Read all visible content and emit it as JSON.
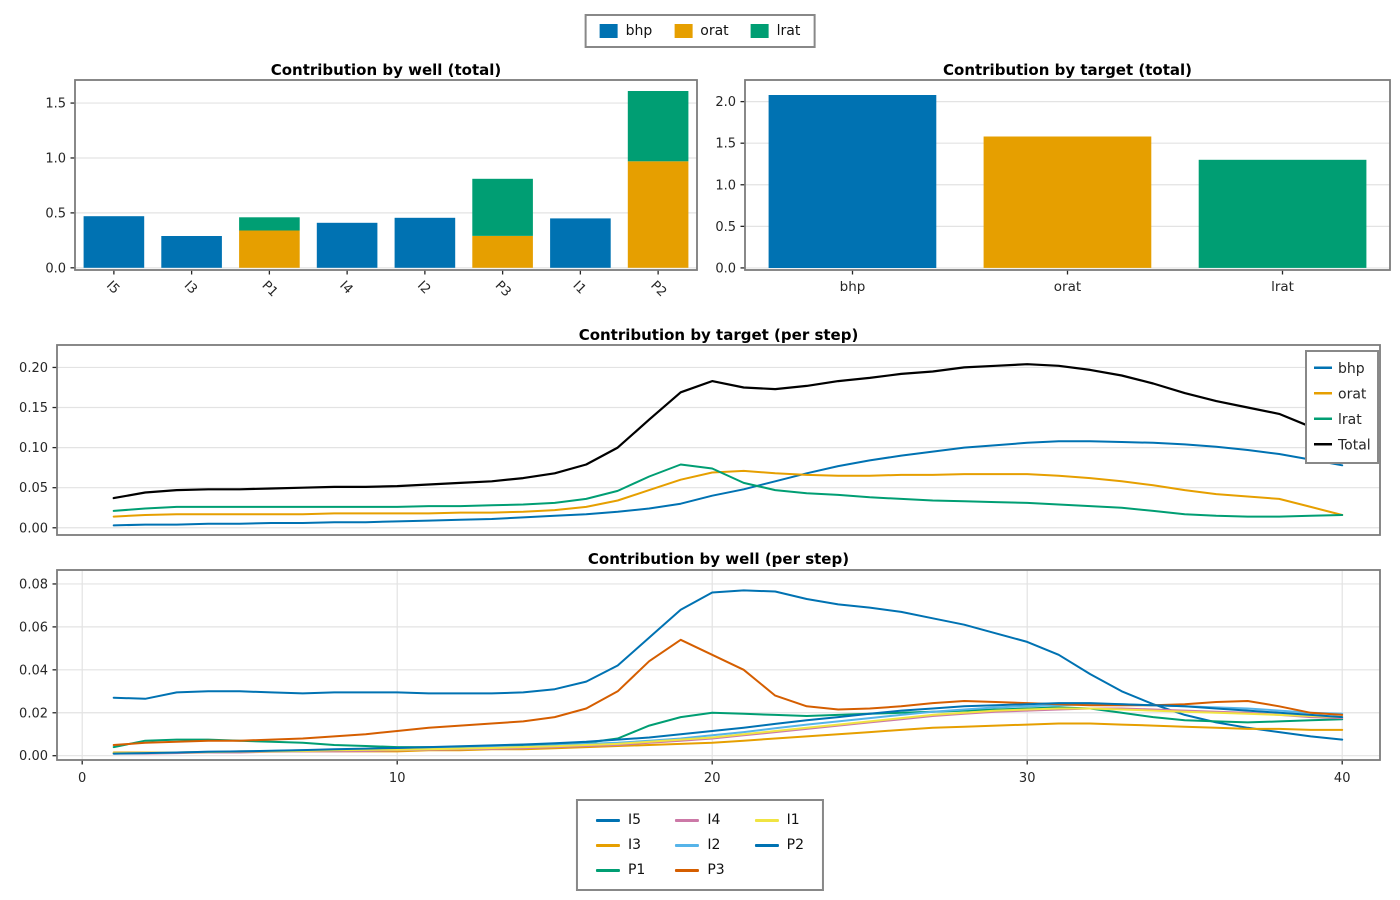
{
  "figure": {
    "background": "#ffffff"
  },
  "palette": {
    "bhp": "#0072B2",
    "orat": "#E69F00",
    "lrat": "#009E73",
    "total": "#000000",
    "axis_spine": "#7c7c7c",
    "gridline": "#e3e3e3",
    "tick_label": "#262626"
  },
  "top_legend": {
    "items": [
      {
        "label": "bhp",
        "color": "#0072B2"
      },
      {
        "label": "orat",
        "color": "#E69F00"
      },
      {
        "label": "lrat",
        "color": "#009E73"
      }
    ]
  },
  "bottom_legend": {
    "columns": [
      [
        "I5",
        "I3",
        "P1"
      ],
      [
        "I4",
        "I2",
        "P3"
      ],
      [
        "I1",
        "P2"
      ]
    ]
  },
  "chart_data": [
    {
      "id": "well-total",
      "type": "bar",
      "stacked": true,
      "title": "Contribution by well (total)",
      "categories": [
        "I5",
        "I3",
        "P1",
        "I4",
        "I2",
        "P3",
        "I1",
        "P2"
      ],
      "xtick_rotation": 45,
      "yticks": [
        "0.0",
        "0.5",
        "1.0",
        "1.5"
      ],
      "ylim": [
        -0.02,
        1.71
      ],
      "series": [
        {
          "name": "bhp",
          "color": "#0072B2",
          "values": [
            0.47,
            0.29,
            0,
            0.41,
            0.455,
            0,
            0.45,
            0
          ]
        },
        {
          "name": "orat",
          "color": "#E69F00",
          "values": [
            0,
            0,
            0.34,
            0,
            0,
            0.29,
            0,
            0.97
          ]
        },
        {
          "name": "lrat",
          "color": "#009E73",
          "values": [
            0,
            0,
            0.12,
            0,
            0,
            0.52,
            0,
            0.64
          ]
        }
      ]
    },
    {
      "id": "target-total",
      "type": "bar",
      "stacked": false,
      "title": "Contribution by target (total)",
      "categories": [
        "bhp",
        "orat",
        "lrat"
      ],
      "yticks": [
        "0.0",
        "0.5",
        "1.0",
        "1.5",
        "2.0"
      ],
      "ylim": [
        -0.025,
        2.26
      ],
      "series": [
        {
          "name": "total",
          "colors": [
            "#0072B2",
            "#E69F00",
            "#009E73"
          ],
          "values": [
            2.08,
            1.58,
            1.3
          ]
        }
      ]
    },
    {
      "id": "target-step",
      "type": "line",
      "title": "Contribution by target (per step)",
      "x_start": 1,
      "xlim": [
        -0.8,
        41.2
      ],
      "ylim": [
        -0.009,
        0.228
      ],
      "yticks": [
        "0.00",
        "0.05",
        "0.10",
        "0.15",
        "0.20"
      ],
      "legend_inside": true,
      "series": [
        {
          "name": "bhp",
          "color": "#0072B2",
          "values": [
            0.003,
            0.004,
            0.004,
            0.005,
            0.005,
            0.006,
            0.006,
            0.007,
            0.007,
            0.008,
            0.009,
            0.01,
            0.011,
            0.013,
            0.015,
            0.017,
            0.02,
            0.024,
            0.03,
            0.04,
            0.048,
            0.058,
            0.068,
            0.077,
            0.084,
            0.09,
            0.095,
            0.1,
            0.103,
            0.106,
            0.108,
            0.108,
            0.107,
            0.106,
            0.104,
            0.101,
            0.097,
            0.092,
            0.085,
            0.078
          ]
        },
        {
          "name": "orat",
          "color": "#E69F00",
          "values": [
            0.014,
            0.016,
            0.017,
            0.017,
            0.017,
            0.017,
            0.017,
            0.018,
            0.018,
            0.018,
            0.018,
            0.019,
            0.019,
            0.02,
            0.022,
            0.026,
            0.034,
            0.047,
            0.06,
            0.069,
            0.071,
            0.068,
            0.066,
            0.065,
            0.065,
            0.066,
            0.066,
            0.067,
            0.067,
            0.067,
            0.065,
            0.062,
            0.058,
            0.053,
            0.047,
            0.042,
            0.039,
            0.036,
            0.026,
            0.016
          ]
        },
        {
          "name": "lrat",
          "color": "#009E73",
          "values": [
            0.021,
            0.024,
            0.026,
            0.026,
            0.026,
            0.026,
            0.026,
            0.026,
            0.026,
            0.026,
            0.027,
            0.027,
            0.028,
            0.029,
            0.031,
            0.036,
            0.046,
            0.064,
            0.079,
            0.074,
            0.056,
            0.047,
            0.043,
            0.041,
            0.038,
            0.036,
            0.034,
            0.033,
            0.032,
            0.031,
            0.029,
            0.027,
            0.025,
            0.021,
            0.017,
            0.015,
            0.014,
            0.014,
            0.015,
            0.016
          ]
        },
        {
          "name": "Total",
          "color": "#000000",
          "width": 2.2,
          "values": [
            0.037,
            0.044,
            0.047,
            0.048,
            0.048,
            0.049,
            0.05,
            0.051,
            0.051,
            0.052,
            0.054,
            0.056,
            0.058,
            0.062,
            0.068,
            0.079,
            0.1,
            0.135,
            0.169,
            0.183,
            0.175,
            0.173,
            0.177,
            0.183,
            0.187,
            0.192,
            0.195,
            0.2,
            0.202,
            0.204,
            0.202,
            0.197,
            0.19,
            0.18,
            0.168,
            0.158,
            0.15,
            0.142,
            0.126,
            0.11
          ]
        }
      ]
    },
    {
      "id": "well-step",
      "type": "line",
      "title": "Contribution by well (per step)",
      "x_start": 1,
      "xlim": [
        -0.8,
        41.2
      ],
      "ylim": [
        -0.002,
        0.0865
      ],
      "yticks": [
        "0.00",
        "0.02",
        "0.04",
        "0.06",
        "0.08"
      ],
      "xticks": [
        "0",
        "10",
        "20",
        "30",
        "40"
      ],
      "x_gridlines": true,
      "series": [
        {
          "name": "I5",
          "color": "#0072B2",
          "values": [
            0.027,
            0.0265,
            0.0295,
            0.03,
            0.03,
            0.0295,
            0.029,
            0.0295,
            0.0295,
            0.0295,
            0.029,
            0.029,
            0.029,
            0.0295,
            0.031,
            0.0345,
            0.042,
            0.055,
            0.068,
            0.076,
            0.077,
            0.0765,
            0.073,
            0.0705,
            0.069,
            0.067,
            0.064,
            0.061,
            0.057,
            0.053,
            0.047,
            0.038,
            0.03,
            0.024,
            0.019,
            0.0155,
            0.013,
            0.011,
            0.009,
            0.0075
          ]
        },
        {
          "name": "I3",
          "color": "#E69F00",
          "values": [
            0.0015,
            0.0015,
            0.0015,
            0.0015,
            0.002,
            0.002,
            0.002,
            0.002,
            0.002,
            0.002,
            0.0025,
            0.0025,
            0.003,
            0.003,
            0.0035,
            0.004,
            0.0045,
            0.005,
            0.0055,
            0.006,
            0.007,
            0.008,
            0.009,
            0.01,
            0.011,
            0.012,
            0.013,
            0.0135,
            0.014,
            0.0145,
            0.015,
            0.015,
            0.0145,
            0.014,
            0.0135,
            0.013,
            0.0125,
            0.0125,
            0.012,
            0.012
          ]
        },
        {
          "name": "P1",
          "color": "#009E73",
          "values": [
            0.004,
            0.007,
            0.0075,
            0.0075,
            0.007,
            0.0065,
            0.006,
            0.005,
            0.0045,
            0.004,
            0.004,
            0.004,
            0.0045,
            0.005,
            0.0055,
            0.006,
            0.008,
            0.014,
            0.018,
            0.02,
            0.0195,
            0.019,
            0.0185,
            0.019,
            0.0195,
            0.02,
            0.0205,
            0.021,
            0.0215,
            0.022,
            0.0225,
            0.022,
            0.02,
            0.018,
            0.0165,
            0.016,
            0.0155,
            0.016,
            0.0165,
            0.017
          ]
        },
        {
          "name": "I4",
          "color": "#CC79A7",
          "values": [
            0.001,
            0.001,
            0.0012,
            0.0015,
            0.0015,
            0.0018,
            0.002,
            0.002,
            0.0022,
            0.0025,
            0.0028,
            0.003,
            0.0032,
            0.0035,
            0.004,
            0.0045,
            0.005,
            0.006,
            0.007,
            0.008,
            0.0095,
            0.011,
            0.0125,
            0.014,
            0.0155,
            0.017,
            0.0185,
            0.0195,
            0.0205,
            0.021,
            0.0215,
            0.022,
            0.022,
            0.0215,
            0.021,
            0.0205,
            0.02,
            0.019,
            0.018,
            0.0175
          ]
        },
        {
          "name": "I2",
          "color": "#56B4E9",
          "values": [
            0.001,
            0.0012,
            0.0015,
            0.0018,
            0.002,
            0.0022,
            0.0025,
            0.0027,
            0.003,
            0.003,
            0.0032,
            0.0035,
            0.004,
            0.0042,
            0.0048,
            0.0055,
            0.006,
            0.007,
            0.008,
            0.0095,
            0.011,
            0.0128,
            0.0145,
            0.016,
            0.0175,
            0.019,
            0.0205,
            0.0215,
            0.0225,
            0.023,
            0.0235,
            0.024,
            0.024,
            0.0235,
            0.023,
            0.0225,
            0.022,
            0.021,
            0.02,
            0.0195
          ]
        },
        {
          "name": "P3",
          "color": "#D55E00",
          "values": [
            0.005,
            0.006,
            0.0065,
            0.007,
            0.007,
            0.0075,
            0.008,
            0.009,
            0.01,
            0.0115,
            0.013,
            0.014,
            0.015,
            0.016,
            0.018,
            0.022,
            0.03,
            0.044,
            0.054,
            0.047,
            0.04,
            0.028,
            0.023,
            0.0215,
            0.022,
            0.023,
            0.0245,
            0.0255,
            0.025,
            0.0245,
            0.024,
            0.0235,
            0.0235,
            0.0235,
            0.024,
            0.025,
            0.0255,
            0.023,
            0.02,
            0.019
          ]
        },
        {
          "name": "I1",
          "color": "#F0E442",
          "values": [
            0.0012,
            0.0013,
            0.0015,
            0.0017,
            0.0019,
            0.002,
            0.0022,
            0.0025,
            0.0027,
            0.0028,
            0.003,
            0.0033,
            0.0036,
            0.004,
            0.0044,
            0.005,
            0.0055,
            0.0065,
            0.0075,
            0.0085,
            0.01,
            0.0115,
            0.013,
            0.0145,
            0.016,
            0.0175,
            0.019,
            0.02,
            0.021,
            0.0215,
            0.022,
            0.022,
            0.0215,
            0.021,
            0.0205,
            0.02,
            0.0195,
            0.019,
            0.0185,
            0.018
          ]
        },
        {
          "name": "P2",
          "color": "#0072B2",
          "values": [
            0.001,
            0.0012,
            0.0015,
            0.0018,
            0.002,
            0.0023,
            0.0026,
            0.003,
            0.0033,
            0.0036,
            0.004,
            0.0044,
            0.0048,
            0.0052,
            0.0058,
            0.0065,
            0.0075,
            0.0085,
            0.01,
            0.0115,
            0.013,
            0.0148,
            0.0165,
            0.018,
            0.0195,
            0.021,
            0.022,
            0.023,
            0.0235,
            0.024,
            0.0245,
            0.0245,
            0.024,
            0.0235,
            0.023,
            0.022,
            0.021,
            0.02,
            0.019,
            0.018
          ]
        }
      ]
    }
  ]
}
